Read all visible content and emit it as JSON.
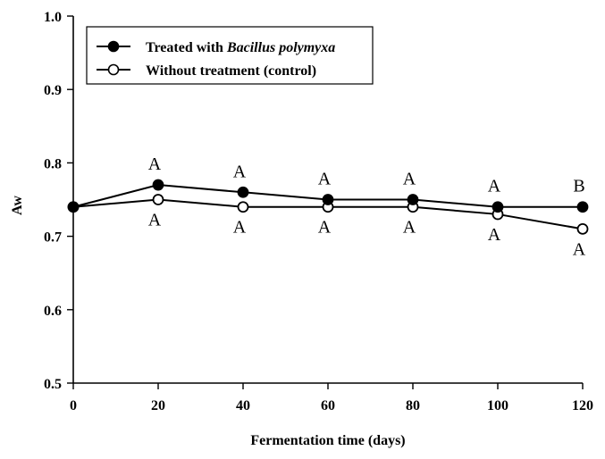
{
  "chart_data": {
    "type": "line",
    "xlabel": "Fermentation time (days)",
    "ylabel": "Aw",
    "xlim": [
      0,
      120
    ],
    "ylim": [
      0.5,
      1.0
    ],
    "x_ticks": [
      0,
      20,
      40,
      60,
      80,
      100,
      120
    ],
    "y_ticks": [
      0.5,
      0.6,
      0.7,
      0.8,
      0.9,
      1.0
    ],
    "x_tick_labels": [
      "0",
      "20",
      "40",
      "60",
      "80",
      "100",
      "120"
    ],
    "y_tick_labels": [
      "0.5",
      "0.6",
      "0.7",
      "0.8",
      "0.9",
      "1.0"
    ],
    "x": [
      0,
      20,
      40,
      60,
      80,
      100,
      120
    ],
    "legend_position": "top-left",
    "series": [
      {
        "name": "Treated with Bacillus polymyxa",
        "legend_prefix": "Treated with ",
        "legend_italic": "Bacillus polymyxa",
        "marker": "filled-circle",
        "values": [
          0.74,
          0.77,
          0.76,
          0.75,
          0.75,
          0.74,
          0.74
        ],
        "significance": [
          "",
          "A",
          "A",
          "A",
          "A",
          "A",
          "B"
        ],
        "label_side": "above"
      },
      {
        "name": "Without treatment (control)",
        "legend_prefix": "Without treatment (control)",
        "legend_italic": "",
        "marker": "open-circle",
        "values": [
          0.74,
          0.75,
          0.74,
          0.74,
          0.74,
          0.73,
          0.71
        ],
        "significance": [
          "",
          "A",
          "A",
          "A",
          "A",
          "A",
          "A"
        ],
        "label_side": "below"
      }
    ]
  }
}
